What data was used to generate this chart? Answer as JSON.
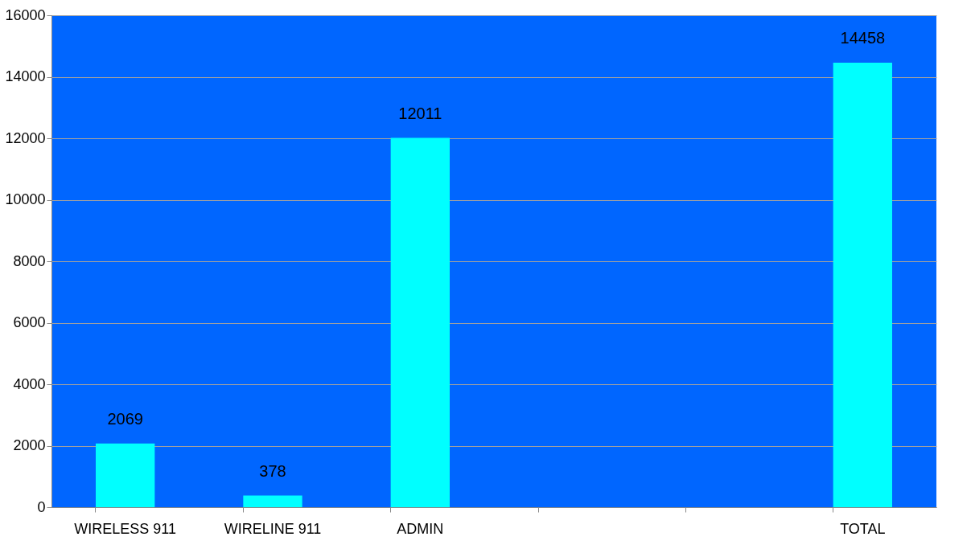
{
  "chart_data": {
    "type": "bar",
    "categories": [
      "WIRELESS 911",
      "WIRELINE 911",
      "ADMIN",
      null,
      null,
      "TOTAL"
    ],
    "values": [
      2069,
      378,
      12011,
      null,
      null,
      14458
    ],
    "color": "#00ffff",
    "ylim": [
      0,
      16000
    ],
    "yticks": [
      0,
      2000,
      4000,
      6000,
      8000,
      10000,
      12000,
      14000,
      16000
    ],
    "grid": "y",
    "data_labels": true
  }
}
